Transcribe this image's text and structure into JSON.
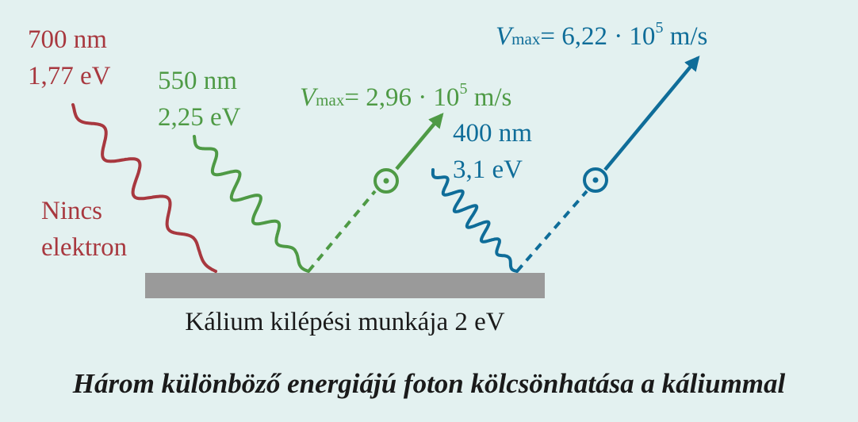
{
  "colors": {
    "background": "#e3f1f0",
    "red": "#a8383f",
    "green": "#4e9a45",
    "blue": "#0f6d99",
    "plate": "#9a9a9a",
    "text": "#1a1a1a"
  },
  "photons": {
    "red": {
      "wavelength": "700 nm",
      "energy": "1,77 eV",
      "result_line1": "Nincs",
      "result_line2": "elektron"
    },
    "green": {
      "wavelength": "550 nm",
      "energy": "2,25 eV",
      "vmax_symbol": "V",
      "vmax_subscript": "max",
      "vmax_value": "= 2,96 · 10",
      "vmax_exponent": "5",
      "vmax_unit": " m/s"
    },
    "blue": {
      "wavelength": "400 nm",
      "energy": "3,1 eV",
      "vmax_symbol": "V",
      "vmax_subscript": "max",
      "vmax_value": "= 6,22 · 10",
      "vmax_exponent": "5",
      "vmax_unit": " m/s"
    }
  },
  "plate_label": "Kálium kilépési munkája 2 eV",
  "caption": "Három különböző energiájú foton kölcsönhatása a káliummal"
}
